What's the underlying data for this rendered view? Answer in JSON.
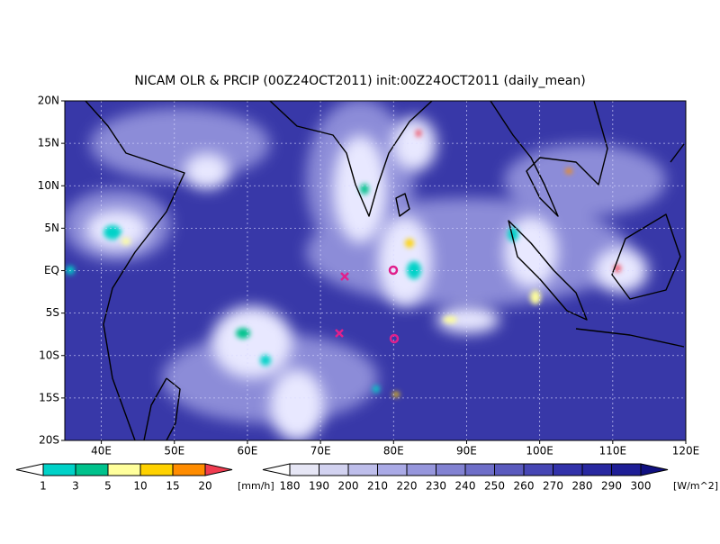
{
  "title": "NICAM OLR & PRCIP (00Z24OCT2011) init:00Z24OCT2011 (daily_mean)",
  "map": {
    "lat_labels": [
      "20N",
      "15N",
      "10N",
      "5N",
      "EQ",
      "5S",
      "10S",
      "15S",
      "20S"
    ],
    "lon_labels": [
      "40E",
      "50E",
      "60E",
      "70E",
      "80E",
      "90E",
      "100E",
      "110E",
      "120E"
    ]
  },
  "precip_colorbar": {
    "labels": [
      "1",
      "3",
      "5",
      "10",
      "15",
      "20"
    ],
    "colors": [
      "#ffffff",
      "#00d2c8",
      "#00c28c",
      "#ffff9c",
      "#ffd200",
      "#ff8c00",
      "#f03c50"
    ],
    "units": "[mm/h]"
  },
  "olr_colorbar": {
    "labels": [
      "180",
      "190",
      "200",
      "210",
      "220",
      "230",
      "240",
      "250",
      "260",
      "270",
      "280",
      "290",
      "300"
    ],
    "colors": [
      "#ffffff",
      "#e6e6f5",
      "#d2d2f0",
      "#bebeeb",
      "#aaaae6",
      "#9696dc",
      "#8282d2",
      "#6e6ec8",
      "#5a5abe",
      "#4646b4",
      "#3232aa",
      "#2828a0",
      "#1e1e96",
      "#101080"
    ],
    "units": "[W/m^2]"
  }
}
